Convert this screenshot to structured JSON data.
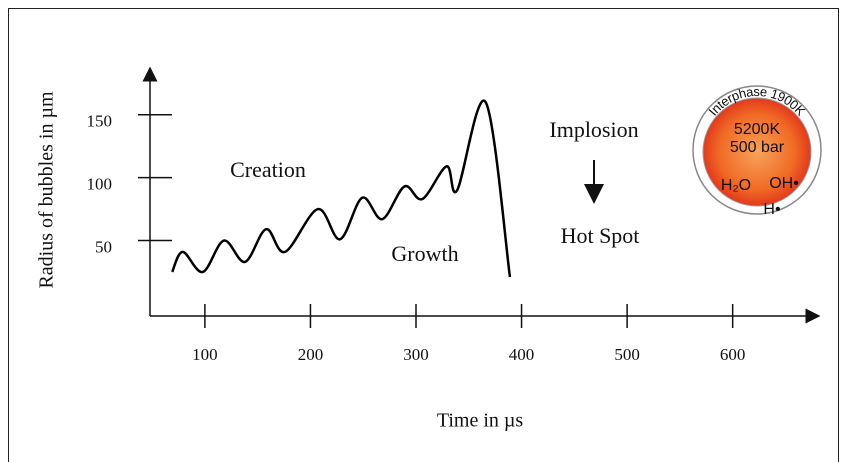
{
  "chart_data": {
    "type": "line",
    "y_label": "Radius of bubbles in µm",
    "x_label": "Time  in µs",
    "x": [
      69,
      79,
      98,
      118,
      138,
      158,
      176,
      207,
      228,
      249,
      268,
      289,
      306,
      329,
      339,
      366,
      389
    ],
    "values": [
      25,
      41,
      25,
      50,
      33,
      59,
      41,
      75,
      51,
      84,
      67,
      93,
      83,
      109,
      90,
      160,
      21
    ],
    "color": "#000000",
    "xlim": [
      48,
      678
    ],
    "ylim": [
      -10,
      184
    ],
    "xticks": [
      100,
      200,
      300,
      400,
      500,
      600
    ],
    "yticks": [
      50,
      100,
      150
    ],
    "annotations": [
      "Creation",
      "Growth",
      "Implosion",
      "Hot Spot"
    ],
    "hot_spot": {
      "interphase": "Interphase 1900K",
      "temperature": "5200K",
      "pressure": "500 bar",
      "species": [
        "H₂O",
        "OH•",
        "H•"
      ]
    }
  }
}
